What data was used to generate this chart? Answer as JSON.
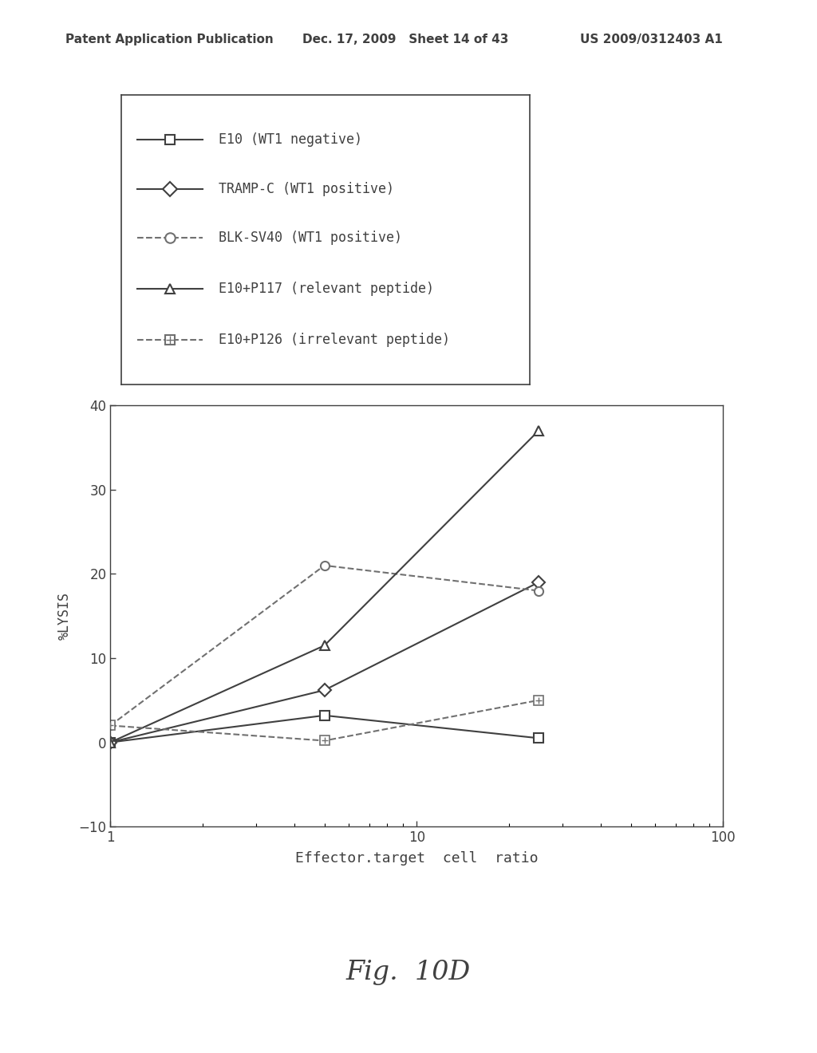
{
  "series": [
    {
      "label": "E10 (WT1 negative)",
      "x": [
        1,
        5,
        25
      ],
      "y": [
        0.0,
        3.2,
        0.5
      ],
      "color": "#404040",
      "linestyle": "solid",
      "marker": "s",
      "markersize": 8,
      "dashed": false,
      "plus_marker": false
    },
    {
      "label": "TRAMP-C (WT1 positive)",
      "x": [
        1,
        5,
        25
      ],
      "y": [
        0.0,
        6.2,
        19.0
      ],
      "color": "#404040",
      "linestyle": "solid",
      "marker": "D",
      "markersize": 8,
      "dashed": false,
      "plus_marker": false
    },
    {
      "label": "BLK-SV40 (WT1 positive)",
      "x": [
        1,
        5,
        25
      ],
      "y": [
        2.0,
        21.0,
        18.0
      ],
      "color": "#707070",
      "linestyle": "dashed",
      "marker": "o",
      "markersize": 8,
      "dashed": true,
      "plus_marker": false
    },
    {
      "label": "E10+P117 (relevant peptide)",
      "x": [
        1,
        5,
        25
      ],
      "y": [
        0.0,
        11.5,
        37.0
      ],
      "color": "#404040",
      "linestyle": "solid",
      "marker": "^",
      "markersize": 9,
      "dashed": false,
      "plus_marker": false
    },
    {
      "label": "E10+P126 (irrelevant peptide)",
      "x": [
        1,
        5,
        25
      ],
      "y": [
        2.0,
        0.2,
        5.0
      ],
      "color": "#707070",
      "linestyle": "dashed",
      "marker": "s",
      "markersize": 8,
      "dashed": true,
      "plus_marker": true
    }
  ],
  "legend_items": [
    {
      "label": "E10 (WT1 negative)",
      "marker": "s",
      "ls": "-",
      "color": "#404040",
      "plus": false
    },
    {
      "label": "TRAMP-C (WT1 positive)",
      "marker": "D",
      "ls": "-",
      "color": "#404040",
      "plus": false
    },
    {
      "label": "BLK-SV40 (WT1 positive)",
      "marker": "o",
      "ls": "--",
      "color": "#707070",
      "plus": false
    },
    {
      "label": "E10+P117 (relevant peptide)",
      "marker": "^",
      "ls": "-",
      "color": "#404040",
      "plus": false
    },
    {
      "label": "E10+P126 (irrelevant peptide)",
      "marker": "s",
      "ls": "--",
      "color": "#707070",
      "plus": true
    }
  ],
  "xlabel": "Effector.target  cell  ratio",
  "ylabel": "%LYSIS",
  "ylim": [
    -10,
    40
  ],
  "yticks": [
    -10,
    0,
    10,
    20,
    30,
    40
  ],
  "xlim": [
    1,
    100
  ],
  "fig_caption": "Fig.  10D",
  "header_left": "Patent Application Publication",
  "header_middle": "Dec. 17, 2009   Sheet 14 of 43",
  "header_right": "US 2009/0312403 A1",
  "background_color": "#ffffff",
  "axis_color": "#404040",
  "font_color": "#404040"
}
